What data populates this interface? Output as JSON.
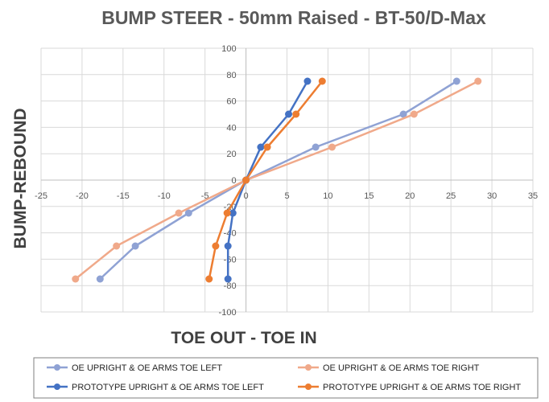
{
  "chart_data": {
    "type": "scatter",
    "title": "BUMP STEER - 50mm Raised - BT-50/D-Max",
    "xlabel": "TOE OUT - TOE IN",
    "ylabel": "BUMP-REBOUND",
    "xlim": [
      -25,
      35
    ],
    "ylim": [
      -100,
      100
    ],
    "x_ticks": [
      "-25",
      "-20",
      "-15",
      "-10",
      "-5",
      "0",
      "5",
      "10",
      "15",
      "20",
      "25",
      "30",
      "35"
    ],
    "y_ticks": [
      "100",
      "80",
      "60",
      "40",
      "20",
      "0",
      "-20",
      "-40",
      "-60",
      "-80",
      "-100"
    ],
    "grid": "horizontal and vertical",
    "legend_position": "bottom",
    "series": [
      {
        "name": "OE UPRIGHT & OE ARMS TOE LEFT",
        "color": "#8fa2d4",
        "x": [
          -17.8,
          -13.5,
          -7,
          0,
          8.5,
          19.2,
          25.7
        ],
        "y": [
          -75,
          -50,
          -25,
          0,
          25,
          50,
          75
        ]
      },
      {
        "name": "OE UPRIGHT & OE ARMS TOE RIGHT",
        "color": "#f0a98a",
        "x": [
          -20.8,
          -15.8,
          -8.2,
          0,
          10.5,
          20.5,
          28.3
        ],
        "y": [
          -75,
          -50,
          -25,
          0,
          25,
          50,
          75
        ]
      },
      {
        "name": "PROTOTYPE UPRIGHT & OE ARMS TOE LEFT",
        "color": "#4472c4",
        "x": [
          -2.2,
          -2.2,
          -1.6,
          0,
          1.8,
          5.2,
          7.5
        ],
        "y": [
          -75,
          -50,
          -25,
          0,
          25,
          50,
          75
        ]
      },
      {
        "name": "PROTOTYPE UPRIGHT & OE ARMS TOE RIGHT",
        "color": "#ed7d31",
        "x": [
          -4.5,
          -3.7,
          -2.3,
          0,
          2.6,
          6.1,
          9.3
        ],
        "y": [
          -75,
          -50,
          -25,
          0,
          25,
          50,
          75
        ]
      }
    ]
  }
}
